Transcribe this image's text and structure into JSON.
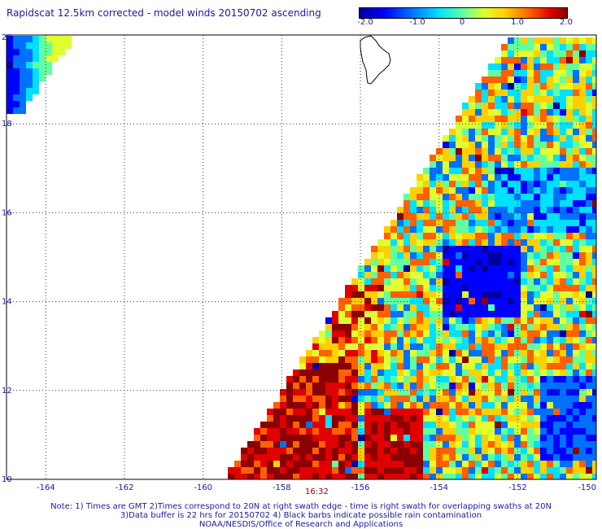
{
  "title": "Rapidscat 12.5km corrected - model winds 20150702 ascending",
  "colorbar": {
    "ticks": [
      "-2.0",
      "-1.0",
      "0",
      "1.0",
      "2.0"
    ],
    "colors": [
      "#0000a0",
      "#0000ff",
      "#0070ff",
      "#00e0ff",
      "#60ffa0",
      "#e0ff30",
      "#ffd000",
      "#ff6000",
      "#e00000",
      "#8b0000"
    ]
  },
  "map": {
    "lon_ticks": [
      "-164",
      "-162",
      "-160",
      "-158",
      "-156",
      "-154",
      "-152",
      "-150"
    ],
    "lat_ticks": [
      "20",
      "18",
      "16",
      "14",
      "12",
      "10"
    ],
    "lon_range": [
      -165,
      -150
    ],
    "lat_range": [
      10,
      20
    ],
    "time_label": "16:32"
  },
  "notes": [
    "Note: 1) Times are GMT 2)Times correspond to 20N at right swath edge - time is right swath for overlapping swaths at 20N",
    "3)Data buffer is 22 hrs for 20150702 4) Black barbs indicate possible rain contamination",
    "NOAA/NESDIS/Office of Research and Applications"
  ]
}
